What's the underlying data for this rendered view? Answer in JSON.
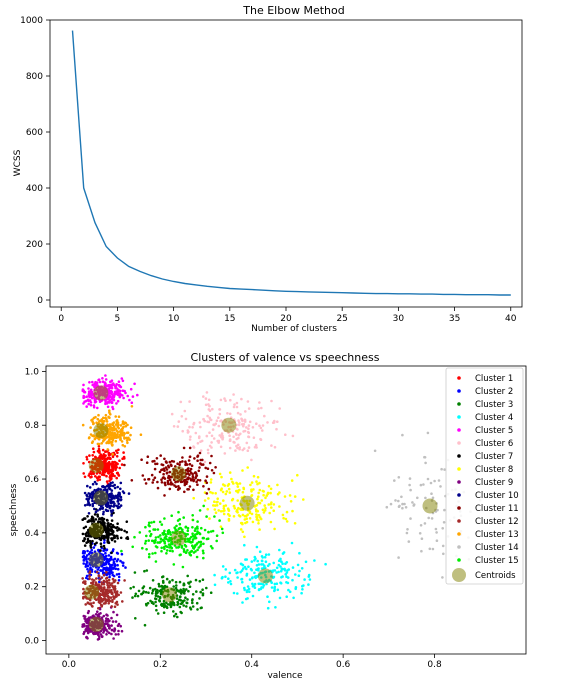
{
  "chart_data": [
    {
      "type": "line",
      "title": "The Elbow Method",
      "xlabel": "Number of clusters",
      "ylabel": "WCSS",
      "xlim": [
        -1,
        41
      ],
      "ylim": [
        -25,
        1000
      ],
      "xticks": [
        0,
        5,
        10,
        15,
        20,
        25,
        30,
        35,
        40
      ],
      "yticks": [
        0,
        200,
        400,
        600,
        800,
        1000
      ],
      "grid": false,
      "color": "#1f77b4",
      "x": [
        1,
        2,
        3,
        4,
        5,
        6,
        7,
        8,
        9,
        10,
        11,
        12,
        13,
        14,
        15,
        16,
        17,
        18,
        19,
        20,
        21,
        22,
        23,
        24,
        25,
        26,
        27,
        28,
        29,
        30,
        31,
        32,
        33,
        34,
        35,
        36,
        37,
        38,
        39,
        40
      ],
      "values": [
        962,
        400,
        276,
        191,
        150,
        120,
        102,
        87,
        75,
        66,
        59,
        54,
        49,
        45,
        41,
        39,
        37,
        35,
        33,
        31,
        30,
        29,
        28,
        27,
        26,
        25,
        24,
        23,
        23,
        22,
        22,
        21,
        21,
        20,
        20,
        19,
        19,
        19,
        18,
        18
      ]
    },
    {
      "type": "scatter",
      "title": "Clusters of valence vs speechness",
      "xlabel": "valence",
      "ylabel": "speechness",
      "xlim": [
        -0.05,
        1.0
      ],
      "ylim": [
        -0.05,
        1.02
      ],
      "xticks": [
        0.0,
        0.2,
        0.4,
        0.6,
        0.8
      ],
      "yticks": [
        0.0,
        0.2,
        0.4,
        0.6,
        0.8,
        1.0
      ],
      "grid": false,
      "legend_position": "top-right",
      "series": [
        {
          "name": "Cluster 1",
          "color": "#ff0000",
          "center": [
            0.08,
            0.65
          ],
          "spread": [
            0.035,
            0.05
          ],
          "count": 260
        },
        {
          "name": "Cluster 2",
          "color": "#0000ff",
          "center": [
            0.07,
            0.29
          ],
          "spread": [
            0.035,
            0.05
          ],
          "count": 260
        },
        {
          "name": "Cluster 3",
          "color": "#008000",
          "center": [
            0.22,
            0.17
          ],
          "spread": [
            0.06,
            0.06
          ],
          "count": 200
        },
        {
          "name": "Cluster 4",
          "color": "#00ffff",
          "center": [
            0.43,
            0.24
          ],
          "spread": [
            0.08,
            0.08
          ],
          "count": 200
        },
        {
          "name": "Cluster 5",
          "color": "#ff00ff",
          "center": [
            0.08,
            0.92
          ],
          "spread": [
            0.04,
            0.04
          ],
          "count": 260
        },
        {
          "name": "Cluster 6",
          "color": "#ffc0cb",
          "center": [
            0.35,
            0.8
          ],
          "spread": [
            0.1,
            0.09
          ],
          "count": 200
        },
        {
          "name": "Cluster 7",
          "color": "#000000",
          "center": [
            0.07,
            0.41
          ],
          "spread": [
            0.035,
            0.05
          ],
          "count": 260
        },
        {
          "name": "Cluster 8",
          "color": "#ffff00",
          "center": [
            0.39,
            0.51
          ],
          "spread": [
            0.08,
            0.08
          ],
          "count": 200
        },
        {
          "name": "Cluster 9",
          "color": "#800080",
          "center": [
            0.06,
            0.06
          ],
          "spread": [
            0.035,
            0.04
          ],
          "count": 220
        },
        {
          "name": "Cluster 10",
          "color": "#00008b",
          "center": [
            0.08,
            0.53
          ],
          "spread": [
            0.035,
            0.045
          ],
          "count": 240
        },
        {
          "name": "Cluster 11",
          "color": "#8b0000",
          "center": [
            0.24,
            0.62
          ],
          "spread": [
            0.06,
            0.06
          ],
          "count": 200
        },
        {
          "name": "Cluster 12",
          "color": "#a52a2a",
          "center": [
            0.07,
            0.18
          ],
          "spread": [
            0.035,
            0.045
          ],
          "count": 240
        },
        {
          "name": "Cluster 13",
          "color": "#ffa500",
          "center": [
            0.09,
            0.78
          ],
          "spread": [
            0.04,
            0.05
          ],
          "count": 240
        },
        {
          "name": "Cluster 14",
          "color": "#c0c0c0",
          "center": [
            0.79,
            0.5
          ],
          "spread": [
            0.08,
            0.17
          ],
          "count": 90
        },
        {
          "name": "Cluster 15",
          "color": "#00ee00",
          "center": [
            0.24,
            0.38
          ],
          "spread": [
            0.06,
            0.06
          ],
          "count": 240
        }
      ],
      "centroids": {
        "name": "Centroids",
        "color": "#808000",
        "points": [
          [
            0.06,
            0.65
          ],
          [
            0.06,
            0.3
          ],
          [
            0.22,
            0.17
          ],
          [
            0.43,
            0.24
          ],
          [
            0.07,
            0.92
          ],
          [
            0.35,
            0.8
          ],
          [
            0.06,
            0.41
          ],
          [
            0.39,
            0.51
          ],
          [
            0.06,
            0.06
          ],
          [
            0.07,
            0.53
          ],
          [
            0.24,
            0.62
          ],
          [
            0.05,
            0.18
          ],
          [
            0.07,
            0.78
          ],
          [
            0.79,
            0.5
          ],
          [
            0.24,
            0.38
          ]
        ]
      }
    }
  ]
}
